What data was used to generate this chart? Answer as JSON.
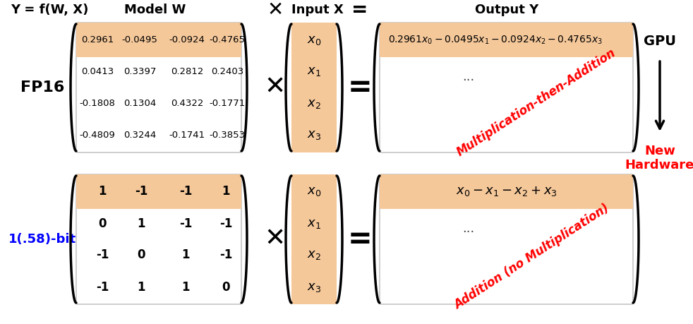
{
  "bg_color": "#ffffff",
  "highlight_color": "#f5c89a",
  "fp16_matrix": [
    [
      "0.2961",
      "-0.0495",
      "-0.0924",
      "-0.4765"
    ],
    [
      "0.0413",
      "0.3397",
      "0.2812",
      "0.2403"
    ],
    [
      "-0.1808",
      "0.1304",
      "0.4322",
      "-0.1771"
    ],
    [
      "-0.4809",
      "0.3244",
      "-0.1741",
      "-0.3853"
    ]
  ],
  "bitnet_matrix": [
    [
      "1",
      "-1",
      "-1",
      "1"
    ],
    [
      "0",
      "1",
      "-1",
      "-1"
    ],
    [
      "-1",
      "0",
      "1",
      "-1"
    ],
    [
      "-1",
      "1",
      "1",
      "0"
    ]
  ],
  "input_vector": [
    "x_0",
    "x_1",
    "x_2",
    "x_3"
  ],
  "fp16_label": "FP16",
  "bitnet_label": "1(.58)-bit",
  "header_text": "Y = f(W, X)",
  "model_w_text": "Model W",
  "input_x_text": "Input X",
  "output_y_text": "Output Y",
  "gpu_label": "GPU",
  "new_hw_label": "New\nHardware",
  "fp16_annotation": "Multiplication-then-Addition",
  "bitnet_annotation": "Addition (no Multiplication)",
  "fp16_eq": "0.2961$x_0$ − 0.0495$x_1$ − 0.0924$x_2$ − 0.4765$x_3$",
  "bitnet_eq": "$x_0$ − $x_1$ − $x_2$ + $x_3$"
}
